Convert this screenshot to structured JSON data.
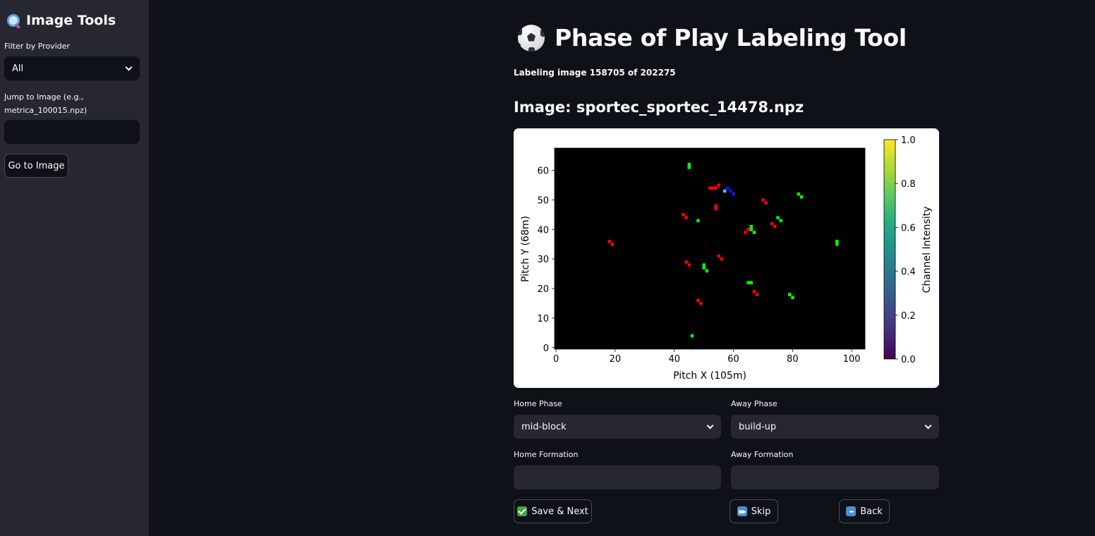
{
  "sidebar": {
    "title": "Image Tools",
    "filter_label": "Filter by Provider",
    "filter_value": "All",
    "jump_label_line1": "Jump to Image (e.g.,",
    "jump_label_line2": "metrica_100015.npz)",
    "jump_value": "",
    "go_button": "Go to Image"
  },
  "main": {
    "title": "Phase of Play Labeling Tool",
    "progress_text": "Labeling image 158705 of 202275",
    "image_heading": "Image: sportec_sportec_14478.npz",
    "home_phase_label": "Home Phase",
    "home_phase_value": "mid-block",
    "away_phase_label": "Away Phase",
    "away_phase_value": "build-up",
    "home_formation_label": "Home Formation",
    "home_formation_value": "",
    "away_formation_label": "Away Formation",
    "away_formation_value": "",
    "save_button": "Save & Next",
    "skip_button": "Skip",
    "back_button": "Back"
  },
  "chart_data": {
    "type": "heatmap",
    "xlabel": "Pitch X (105m)",
    "ylabel": "Pitch Y (68m)",
    "colorbar_label": "Channel Intensity",
    "xlim": [
      -0.5,
      104.5
    ],
    "ylim": [
      -0.5,
      67.5
    ],
    "xticks": [
      "0",
      "20",
      "40",
      "60",
      "80",
      "100"
    ],
    "yticks": [
      "0",
      "10",
      "20",
      "30",
      "40",
      "50",
      "60"
    ],
    "colorbar_ticks": [
      "0.0",
      "0.2",
      "0.4",
      "0.6",
      "0.8",
      "1.0"
    ],
    "colormap": "viridis",
    "background": "#000000",
    "series": [
      {
        "color": "#ff0000",
        "cells": [
          [
            18,
            36
          ],
          [
            19,
            35
          ],
          [
            43,
            45
          ],
          [
            44,
            44
          ],
          [
            44,
            29
          ],
          [
            45,
            28
          ],
          [
            48,
            16
          ],
          [
            49,
            15
          ],
          [
            52,
            54
          ],
          [
            53,
            54
          ],
          [
            54,
            54
          ],
          [
            55,
            55
          ],
          [
            54,
            48
          ],
          [
            54,
            47
          ],
          [
            55,
            31
          ],
          [
            56,
            30
          ],
          [
            64,
            39
          ],
          [
            65,
            40
          ],
          [
            67,
            19
          ],
          [
            68,
            18
          ],
          [
            70,
            50
          ],
          [
            71,
            49
          ],
          [
            73,
            42
          ],
          [
            74,
            41
          ]
        ]
      },
      {
        "color": "#00ff00",
        "cells": [
          [
            45,
            62
          ],
          [
            45,
            61
          ],
          [
            46,
            4
          ],
          [
            48,
            43
          ],
          [
            50,
            28
          ],
          [
            50,
            27
          ],
          [
            51,
            26
          ],
          [
            65,
            22
          ],
          [
            66,
            22
          ],
          [
            66,
            41
          ],
          [
            66,
            40
          ],
          [
            67,
            39
          ],
          [
            75,
            44
          ],
          [
            76,
            43
          ],
          [
            79,
            18
          ],
          [
            80,
            17
          ],
          [
            82,
            52
          ],
          [
            83,
            51
          ],
          [
            95,
            36
          ],
          [
            95,
            35
          ]
        ]
      },
      {
        "color": "#1414ff",
        "cells": [
          [
            59,
            53
          ],
          [
            60,
            52
          ],
          [
            58,
            54
          ]
        ]
      },
      {
        "color": "#4fc3f7",
        "cells": [
          [
            57,
            53
          ]
        ]
      }
    ]
  }
}
